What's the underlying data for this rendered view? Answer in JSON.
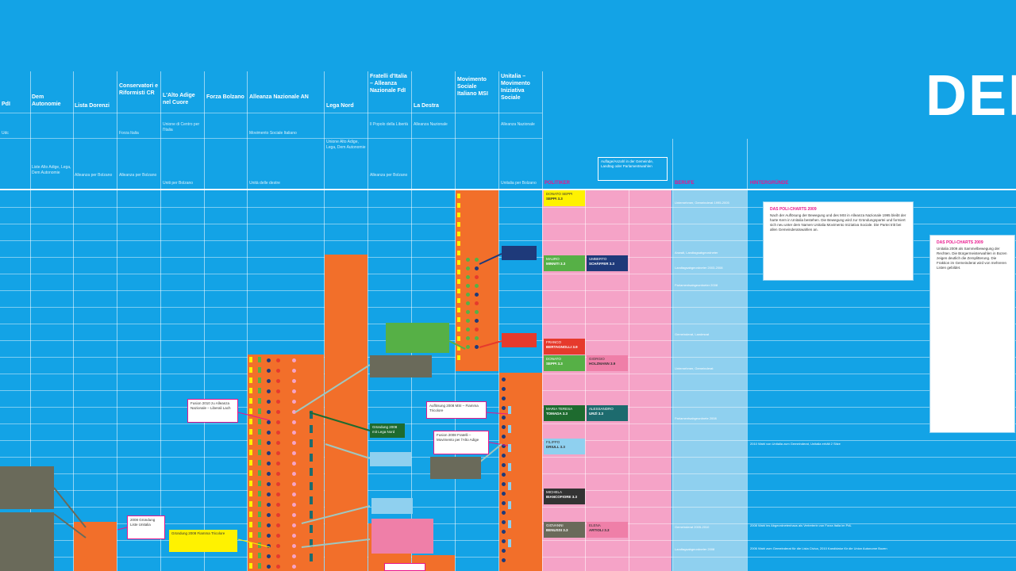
{
  "title": "DEF",
  "columns": [
    {
      "name": "PdI",
      "sub": "Udc",
      "foot": ""
    },
    {
      "name": "Dem Autonomie",
      "sub": "",
      "foot": "Liste Alto Adige, Lega, Dem Autonomie"
    },
    {
      "name": "Lista Dorenzi",
      "sub": "",
      "foot": "Alleanza per Bolzano"
    },
    {
      "name": "Conservatori e Riformisti CR",
      "sub": "Forza Italia",
      "foot": "Alleanza per Bolzano"
    },
    {
      "name": "L'Alto Adige nel Cuore",
      "sub": "Unione di Centro per l'Italia",
      "foot": "Uniti per Bolzano"
    },
    {
      "name": "Forza Bolzano",
      "sub": "",
      "foot": ""
    },
    {
      "name": "Alleanza Nazionale AN",
      "sub": "Movimento Sociale Italiano",
      "foot": "Unità delle destre"
    },
    {
      "name": "Lega Nord",
      "sub": "",
      "foot": "Unione Alto Adige, Lega, Dem Autonomie"
    },
    {
      "name": "Fratelli d'Italia – Alleanza Nazionale FdI",
      "sub": "Il Popolo della Libertà",
      "foot": "Alleanza per Bolzano"
    },
    {
      "name": "La Destra",
      "sub": "Alleanza Nazionale",
      "foot": ""
    },
    {
      "name": "Movimento Sociale Italiano MSI",
      "sub": "",
      "foot": ""
    },
    {
      "name": "Unitalia – Movimento Iniziativa Sociale",
      "sub": "Alleanza Nazionale",
      "foot": "Unitalia per Bolzano"
    }
  ],
  "sections": [
    "POLITIKER",
    "BERUFE",
    "HINTERGRÜNDE"
  ],
  "legend_box": "Auflage/Anzahl in der Gemeinde, Landtag oder Parlamentswahlen",
  "notes": [
    {
      "title": "DAS POLI-CHARTS 2009",
      "text": "Nach der Auflösung der Bewegung und des MSI in Alleanza Nazionale 1995 bleibt der harte Kern in Unitalia bestehen. Die Bewegung wird zur Gründungspartei und formiert sich neu unter dem Namen Unitalia Movimento Iniziativa Sociale. Die Partei tritt bei allen Gemeinderatswahlen an."
    },
    {
      "title": "DAS POLI-CHARTS 2009",
      "text": "Unitalia 2009 als Sammelbewegung der Rechten. Die Bürgermeisterwahlen in Bozen zeigen deutlich die Zersplitterung. Die Fraktion im Gemeinderat wird von mehreren Listen gebildet."
    }
  ],
  "politicians": [
    {
      "label": "DONATO SEPPI",
      "name": "SEPPI 3.3",
      "color": "yellow"
    },
    {
      "label": "MAURO",
      "name": "MINNITI 3.3",
      "color": "green"
    },
    {
      "label": "UMBERTO",
      "name": "SCHÄFFER 3.3",
      "color": "navy"
    },
    {
      "label": "FRANCO",
      "name": "BERTAGNOLLI 3.9",
      "color": "red"
    },
    {
      "label": "DONATO",
      "name": "SEPPI 3.3",
      "color": "green"
    },
    {
      "label": "GIORGIO",
      "name": "HOLZMANN 3.9",
      "color": "pink"
    },
    {
      "label": "MARIA TERESA",
      "name": "TOMADA 3.3",
      "color": "darkgreen"
    },
    {
      "label": "ALESSANDRO",
      "name": "URZÌ 3.3",
      "color": "teal"
    },
    {
      "label": "FILIPPO",
      "name": "DRIULL 3.3",
      "color": "lightblue"
    },
    {
      "label": "MICHELA",
      "name": "BIANCOFIORE 3.3",
      "color": "dark"
    },
    {
      "label": "GIOVANNI",
      "name": "BENUSSI 3.3",
      "color": "grey"
    },
    {
      "label": "ELENA",
      "name": "ARTIOLI 3.3",
      "color": "pinkbox"
    }
  ],
  "berufe": [
    "Unternehmer, Gemeinderat 1995-2005",
    "Anwalt, Landtagsabgeordneter",
    "Landtagsabgeordneter 2003-2008",
    "Parlamentsabgeordneter 2008",
    "Gemeinderat, Landesrat",
    "Unternehmer, Gemeinderat",
    "Parlamentsabgeordnete 2008",
    "Gemeinderat 2005-2010",
    "Landtagsabgeordneter 2008"
  ],
  "hintergruende": [
    "2010 Wahl von Unitalia zum Gemeinderat, Unitalia erhält 2 Sitze",
    "2008 Wahl ins Abgeordnetenhaus als Vertreterin von Forza Italia im PdL",
    "2006 Wahl zum Gemeinderat für die Lista Civica, 2010 Kandidatur für die Union Autonome Bozen"
  ],
  "annotations": [
    {
      "text": "Auflösung 2008 MSI – Fiamma Tricolore",
      "color": "white"
    },
    {
      "text": "Fusion 2010 zu Alleanza Nazionale – Liberali Lach",
      "color": "white"
    },
    {
      "text": "Fusion 2008 Fratelli – Movimento per l'Alto Adige",
      "color": "white"
    },
    {
      "text": "Gründung 2008 mit Lega Nord",
      "color": "white"
    },
    {
      "text": "Gründung 2008 Fiamma Tricolore",
      "color": "yellow"
    },
    {
      "text": "2008 Gründung Liste Unitalia",
      "color": "white"
    }
  ],
  "colors": {
    "background": "#13a3e6",
    "party_bar": "#f26f2a",
    "politiker_band": "#f5a3c7",
    "berufe_band": "#8fd0ef",
    "section_heading": "#e8168c"
  }
}
